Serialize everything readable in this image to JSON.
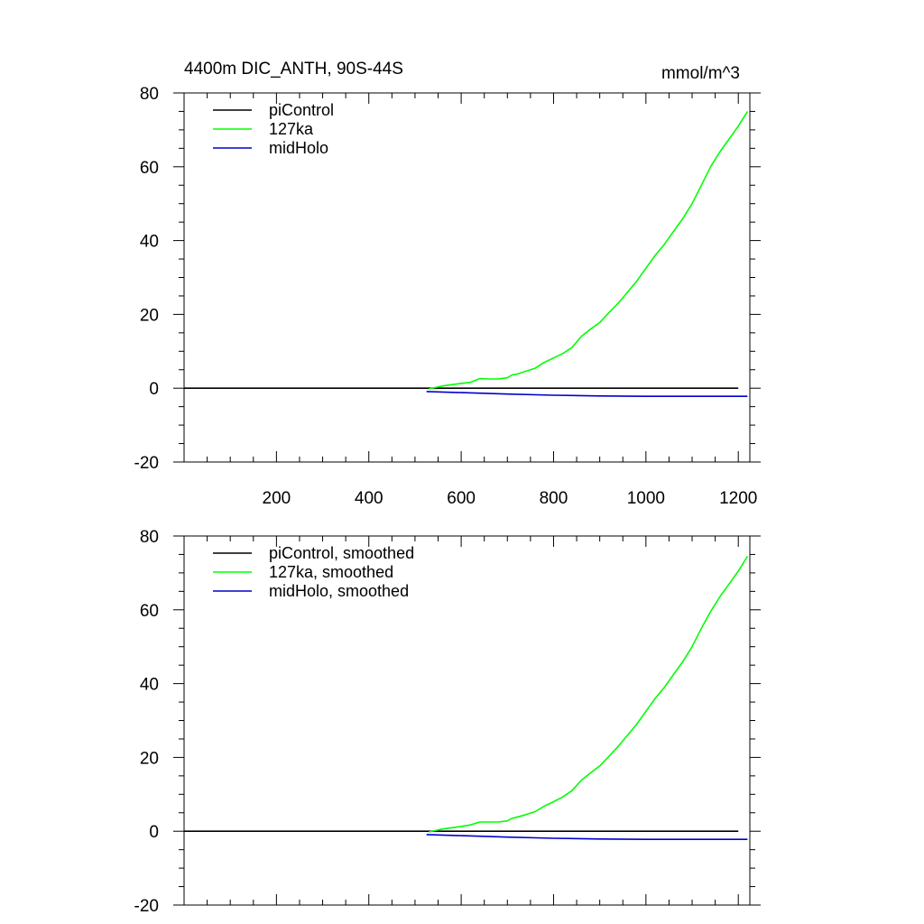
{
  "chart_data": [
    {
      "type": "line",
      "title": "4400m DIC_ANTH, 90S-44S",
      "units": "mmol/m^3",
      "xlim": [
        0,
        1225
      ],
      "ylim": [
        -20,
        80
      ],
      "yticks": [
        -20,
        0,
        20,
        40,
        60,
        80
      ],
      "xticks": [
        200,
        400,
        600,
        800,
        1000,
        1200
      ],
      "show_x_tick_labels": true,
      "grid": false,
      "legend": "top-left",
      "series": [
        {
          "name": "piControl",
          "color": "#000000",
          "x": [
            0,
            200,
            400,
            600,
            800,
            1000,
            1200
          ],
          "y": [
            0,
            0,
            0,
            0,
            0,
            0,
            0
          ]
        },
        {
          "name": "127ka",
          "color": "#00ff00",
          "x": [
            530,
            560,
            600,
            620,
            640,
            660,
            680,
            700,
            710,
            720,
            740,
            760,
            780,
            800,
            820,
            840,
            860,
            880,
            900,
            920,
            940,
            960,
            980,
            1000,
            1020,
            1040,
            1060,
            1080,
            1100,
            1120,
            1140,
            1160,
            1180,
            1200,
            1220
          ],
          "y": [
            -0.2,
            0.6,
            1.3,
            1.6,
            2.6,
            2.5,
            2.5,
            2.8,
            3.6,
            3.8,
            4.6,
            5.4,
            7.0,
            8.2,
            9.4,
            11.0,
            14.0,
            16.0,
            17.8,
            20.5,
            23.0,
            26.0,
            29.0,
            32.5,
            36.0,
            39.0,
            42.5,
            46.0,
            50.0,
            55.0,
            60.0,
            64.0,
            67.5,
            71.0,
            75.0
          ]
        },
        {
          "name": "midHolo",
          "color": "#0000cc",
          "x": [
            525,
            600,
            700,
            800,
            900,
            1000,
            1100,
            1220
          ],
          "y": [
            -0.9,
            -1.2,
            -1.6,
            -1.9,
            -2.1,
            -2.2,
            -2.2,
            -2.2
          ]
        }
      ]
    },
    {
      "type": "line",
      "xlim": [
        0,
        1225
      ],
      "ylim": [
        -20,
        80
      ],
      "yticks": [
        -20,
        0,
        20,
        40,
        60,
        80
      ],
      "xticks": [
        200,
        400,
        600,
        800,
        1000,
        1200
      ],
      "show_x_tick_labels": false,
      "grid": false,
      "legend": "top-left",
      "series": [
        {
          "name": "piControl, smoothed",
          "color": "#000000",
          "x": [
            0,
            200,
            400,
            600,
            800,
            1000,
            1200
          ],
          "y": [
            0,
            0,
            0,
            0,
            0,
            0,
            0
          ]
        },
        {
          "name": "127ka, smoothed",
          "color": "#00ff00",
          "x": [
            530,
            560,
            600,
            620,
            640,
            660,
            680,
            700,
            710,
            720,
            740,
            760,
            780,
            800,
            820,
            840,
            860,
            880,
            900,
            920,
            940,
            960,
            980,
            1000,
            1020,
            1040,
            1060,
            1080,
            1100,
            1120,
            1140,
            1160,
            1180,
            1200,
            1220
          ],
          "y": [
            -0.2,
            0.6,
            1.3,
            1.7,
            2.5,
            2.5,
            2.5,
            2.8,
            3.5,
            3.8,
            4.5,
            5.3,
            6.8,
            8.0,
            9.3,
            11.0,
            13.8,
            15.8,
            17.7,
            20.3,
            23.0,
            26.0,
            29.0,
            32.5,
            36.0,
            39.0,
            42.5,
            46.0,
            50.0,
            55.0,
            59.5,
            63.5,
            67.0,
            70.5,
            74.5
          ]
        },
        {
          "name": "midHolo, smoothed",
          "color": "#0000cc",
          "x": [
            525,
            600,
            700,
            800,
            900,
            1000,
            1100,
            1220
          ],
          "y": [
            -0.9,
            -1.2,
            -1.6,
            -1.9,
            -2.1,
            -2.2,
            -2.2,
            -2.2
          ]
        }
      ]
    }
  ]
}
